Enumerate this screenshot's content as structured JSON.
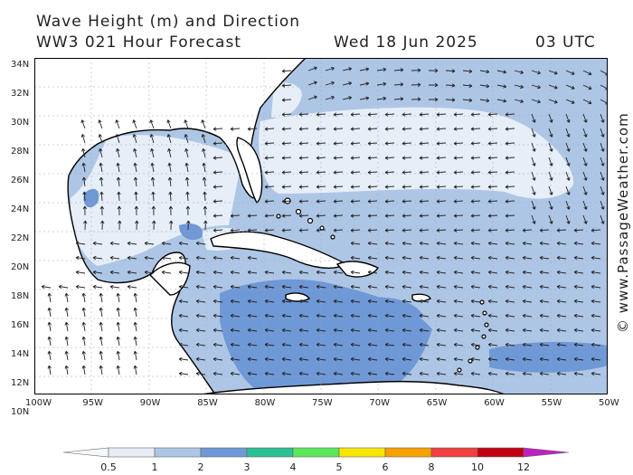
{
  "header": {
    "title": "Wave Height (m) and Direction",
    "model": "WW3 021 Hour Forecast",
    "date": "Wed 18 Jun 2025",
    "time": "03 UTC"
  },
  "credit": "© www.PassageWeather.com",
  "axes": {
    "lat_labels": [
      "34N",
      "32N",
      "30N",
      "28N",
      "26N",
      "24N",
      "22N",
      "20N",
      "18N",
      "16N",
      "14N",
      "12N",
      "10N"
    ],
    "lon_labels": [
      "100W",
      "95W",
      "90W",
      "85W",
      "80W",
      "75W",
      "70W",
      "65W",
      "60W",
      "55W",
      "50W"
    ]
  },
  "legend": {
    "labels": [
      "0.5",
      "1",
      "2",
      "3",
      "4",
      "5",
      "6",
      "8",
      "10",
      "12"
    ],
    "colors": [
      "#e8eef8",
      "#aec6e6",
      "#6f98d6",
      "#2bbf95",
      "#5ae85a",
      "#f7e600",
      "#f7a000",
      "#f04040",
      "#c00010",
      "#c020c0"
    ]
  },
  "colors": {
    "land": "#ffffff",
    "coast": "#000000",
    "band_lt1": "#e6eef8",
    "band_1_2": "#aec6e6",
    "band_2_3": "#6f98d6",
    "band_3_4": "#2bbf95",
    "band_4_5": "#5ae85a"
  }
}
